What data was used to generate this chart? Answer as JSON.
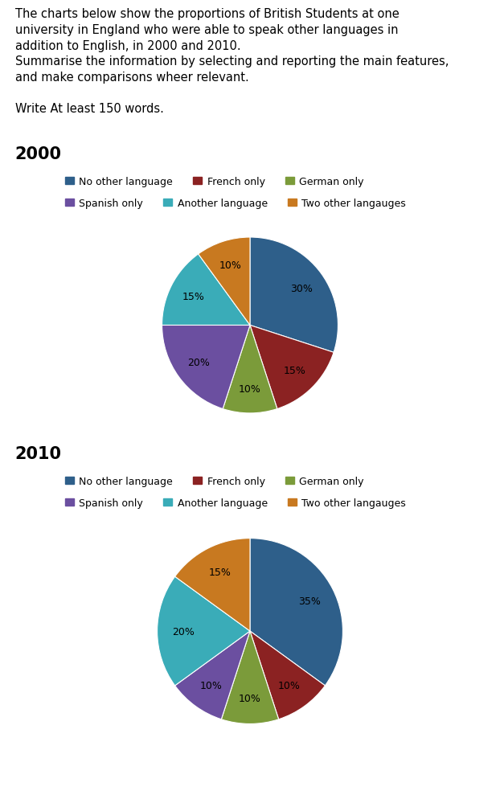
{
  "intro_line1": "The charts below show the proportions of British Students at one",
  "intro_line2": "university in England who were able to speak other languages in",
  "intro_line3": "addition to English, in 2000 and 2010.",
  "intro_line4": "Summarise the information by selecting and reporting the main features,",
  "intro_line5": "and make comparisons wheer relevant.",
  "write_text": "Write At least 150 words.",
  "year_2000": {
    "title": "2000",
    "labels": [
      "No other language",
      "French only",
      "German only",
      "Spanish only",
      "Another language",
      "Two other langauges"
    ],
    "values": [
      30,
      15,
      10,
      20,
      15,
      10
    ],
    "colors": [
      "#2E5F8A",
      "#8B2222",
      "#7B9B3A",
      "#6B4FA0",
      "#3AACB8",
      "#C87920"
    ],
    "startangle": 90
  },
  "year_2010": {
    "title": "2010",
    "labels": [
      "No other language",
      "French only",
      "German only",
      "Spanish only",
      "Another language",
      "Two other langauges"
    ],
    "values": [
      35,
      10,
      10,
      10,
      20,
      15
    ],
    "colors": [
      "#2E5F8A",
      "#8B2222",
      "#7B9B3A",
      "#6B4FA0",
      "#3AACB8",
      "#C87920"
    ],
    "startangle": 90
  },
  "legend_labels_row1": [
    "No other language",
    "French only",
    "German only"
  ],
  "legend_labels_row2": [
    "Spanish only",
    "Another language",
    "Two other langauges"
  ],
  "legend_colors": [
    "#2E5F8A",
    "#8B2222",
    "#7B9B3A",
    "#6B4FA0",
    "#3AACB8",
    "#C87920"
  ],
  "bg_color": "#FFFFFF",
  "font_size_intro": 10.5,
  "font_size_year": 15,
  "font_size_pct": 9,
  "font_size_legend": 9
}
